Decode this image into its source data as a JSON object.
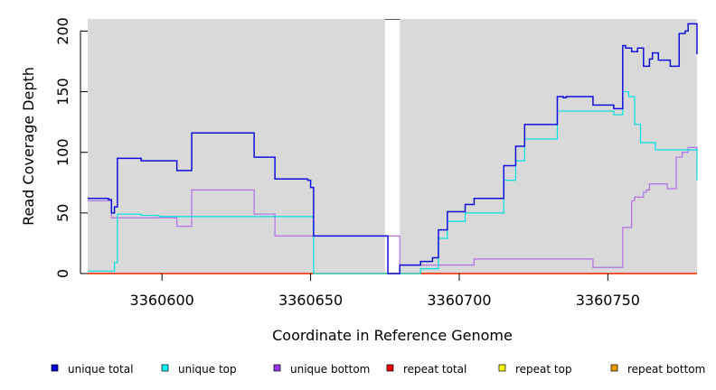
{
  "chart_data": {
    "type": "line",
    "title": "",
    "xlabel": "Coordinate in Reference Genome",
    "ylabel": "Read Coverage Depth",
    "xlim": [
      3360575,
      3360780
    ],
    "ylim": [
      0,
      210
    ],
    "xticks": [
      3360600,
      3360650,
      3360700,
      3360750
    ],
    "yticks": [
      0,
      50,
      100,
      150,
      200
    ],
    "step": true,
    "gap": [
      3360675,
      3360680
    ],
    "legend_position": "bottom",
    "series": [
      {
        "name": "unique total",
        "color": "#0000dd",
        "line_color": "#1010e0",
        "points": [
          [
            3360575,
            62
          ],
          [
            3360582,
            61
          ],
          [
            3360583,
            50
          ],
          [
            3360584,
            55
          ],
          [
            3360585,
            95
          ],
          [
            3360593,
            93
          ],
          [
            3360605,
            85
          ],
          [
            3360610,
            116
          ],
          [
            3360631,
            96
          ],
          [
            3360638,
            78
          ],
          [
            3360649,
            77
          ],
          [
            3360650,
            71
          ],
          [
            3360651,
            31
          ],
          [
            3360675,
            31
          ],
          [
            3360676,
            0
          ],
          [
            3360680,
            7
          ],
          [
            3360687,
            10
          ],
          [
            3360691,
            13
          ],
          [
            3360693,
            36
          ],
          [
            3360696,
            51
          ],
          [
            3360702,
            57
          ],
          [
            3360705,
            62
          ],
          [
            3360715,
            89
          ],
          [
            3360719,
            105
          ],
          [
            3360722,
            123
          ],
          [
            3360733,
            146
          ],
          [
            3360735,
            145
          ],
          [
            3360736,
            146
          ],
          [
            3360745,
            139
          ],
          [
            3360752,
            136
          ],
          [
            3360755,
            188
          ],
          [
            3360756,
            186
          ],
          [
            3360758,
            183
          ],
          [
            3360760,
            186
          ],
          [
            3360762,
            171
          ],
          [
            3360764,
            177
          ],
          [
            3360765,
            182
          ],
          [
            3360767,
            176
          ],
          [
            3360771,
            171
          ],
          [
            3360774,
            198
          ],
          [
            3360776,
            200
          ],
          [
            3360777,
            206
          ],
          [
            3360780,
            181
          ]
        ]
      },
      {
        "name": "unique top",
        "color": "#00ffff",
        "line_color": "#00e0e0",
        "points": [
          [
            3360575,
            2
          ],
          [
            3360583,
            2
          ],
          [
            3360584,
            9
          ],
          [
            3360585,
            49
          ],
          [
            3360593,
            48
          ],
          [
            3360599,
            47
          ],
          [
            3360650,
            47
          ],
          [
            3360651,
            0
          ],
          [
            3360675,
            0
          ],
          [
            3360687,
            4
          ],
          [
            3360693,
            29
          ],
          [
            3360696,
            43
          ],
          [
            3360702,
            50
          ],
          [
            3360715,
            77
          ],
          [
            3360719,
            93
          ],
          [
            3360722,
            111
          ],
          [
            3360733,
            134
          ],
          [
            3360752,
            131
          ],
          [
            3360755,
            150
          ],
          [
            3360757,
            146
          ],
          [
            3360759,
            123
          ],
          [
            3360761,
            108
          ],
          [
            3360766,
            102
          ],
          [
            3360780,
            77
          ]
        ]
      },
      {
        "name": "unique bottom",
        "color": "#9933ee",
        "line_color": "#b070e8",
        "points": [
          [
            3360575,
            60
          ],
          [
            3360583,
            46
          ],
          [
            3360605,
            39
          ],
          [
            3360610,
            69
          ],
          [
            3360631,
            49
          ],
          [
            3360638,
            31
          ],
          [
            3360651,
            31
          ],
          [
            3360675,
            31
          ],
          [
            3360680,
            7
          ],
          [
            3360705,
            12
          ],
          [
            3360745,
            5
          ],
          [
            3360755,
            38
          ],
          [
            3360758,
            60
          ],
          [
            3360759,
            63
          ],
          [
            3360762,
            67
          ],
          [
            3360763,
            69
          ],
          [
            3360764,
            74
          ],
          [
            3360770,
            70
          ],
          [
            3360773,
            96
          ],
          [
            3360775,
            100
          ],
          [
            3360777,
            104
          ],
          [
            3360780,
            100
          ]
        ]
      },
      {
        "name": "repeat total",
        "color": "#ee0000",
        "line_color": "#ee0000",
        "points": [
          [
            3360575,
            0
          ],
          [
            3360780,
            0
          ]
        ]
      },
      {
        "name": "repeat top",
        "color": "#ffff00",
        "line_color": "#ffff00",
        "points": [
          [
            3360575,
            0
          ],
          [
            3360780,
            0
          ]
        ]
      },
      {
        "name": "repeat bottom",
        "color": "#ee9900",
        "line_color": "#ee9900",
        "points": [
          [
            3360575,
            0
          ],
          [
            3360780,
            0
          ]
        ]
      }
    ]
  }
}
